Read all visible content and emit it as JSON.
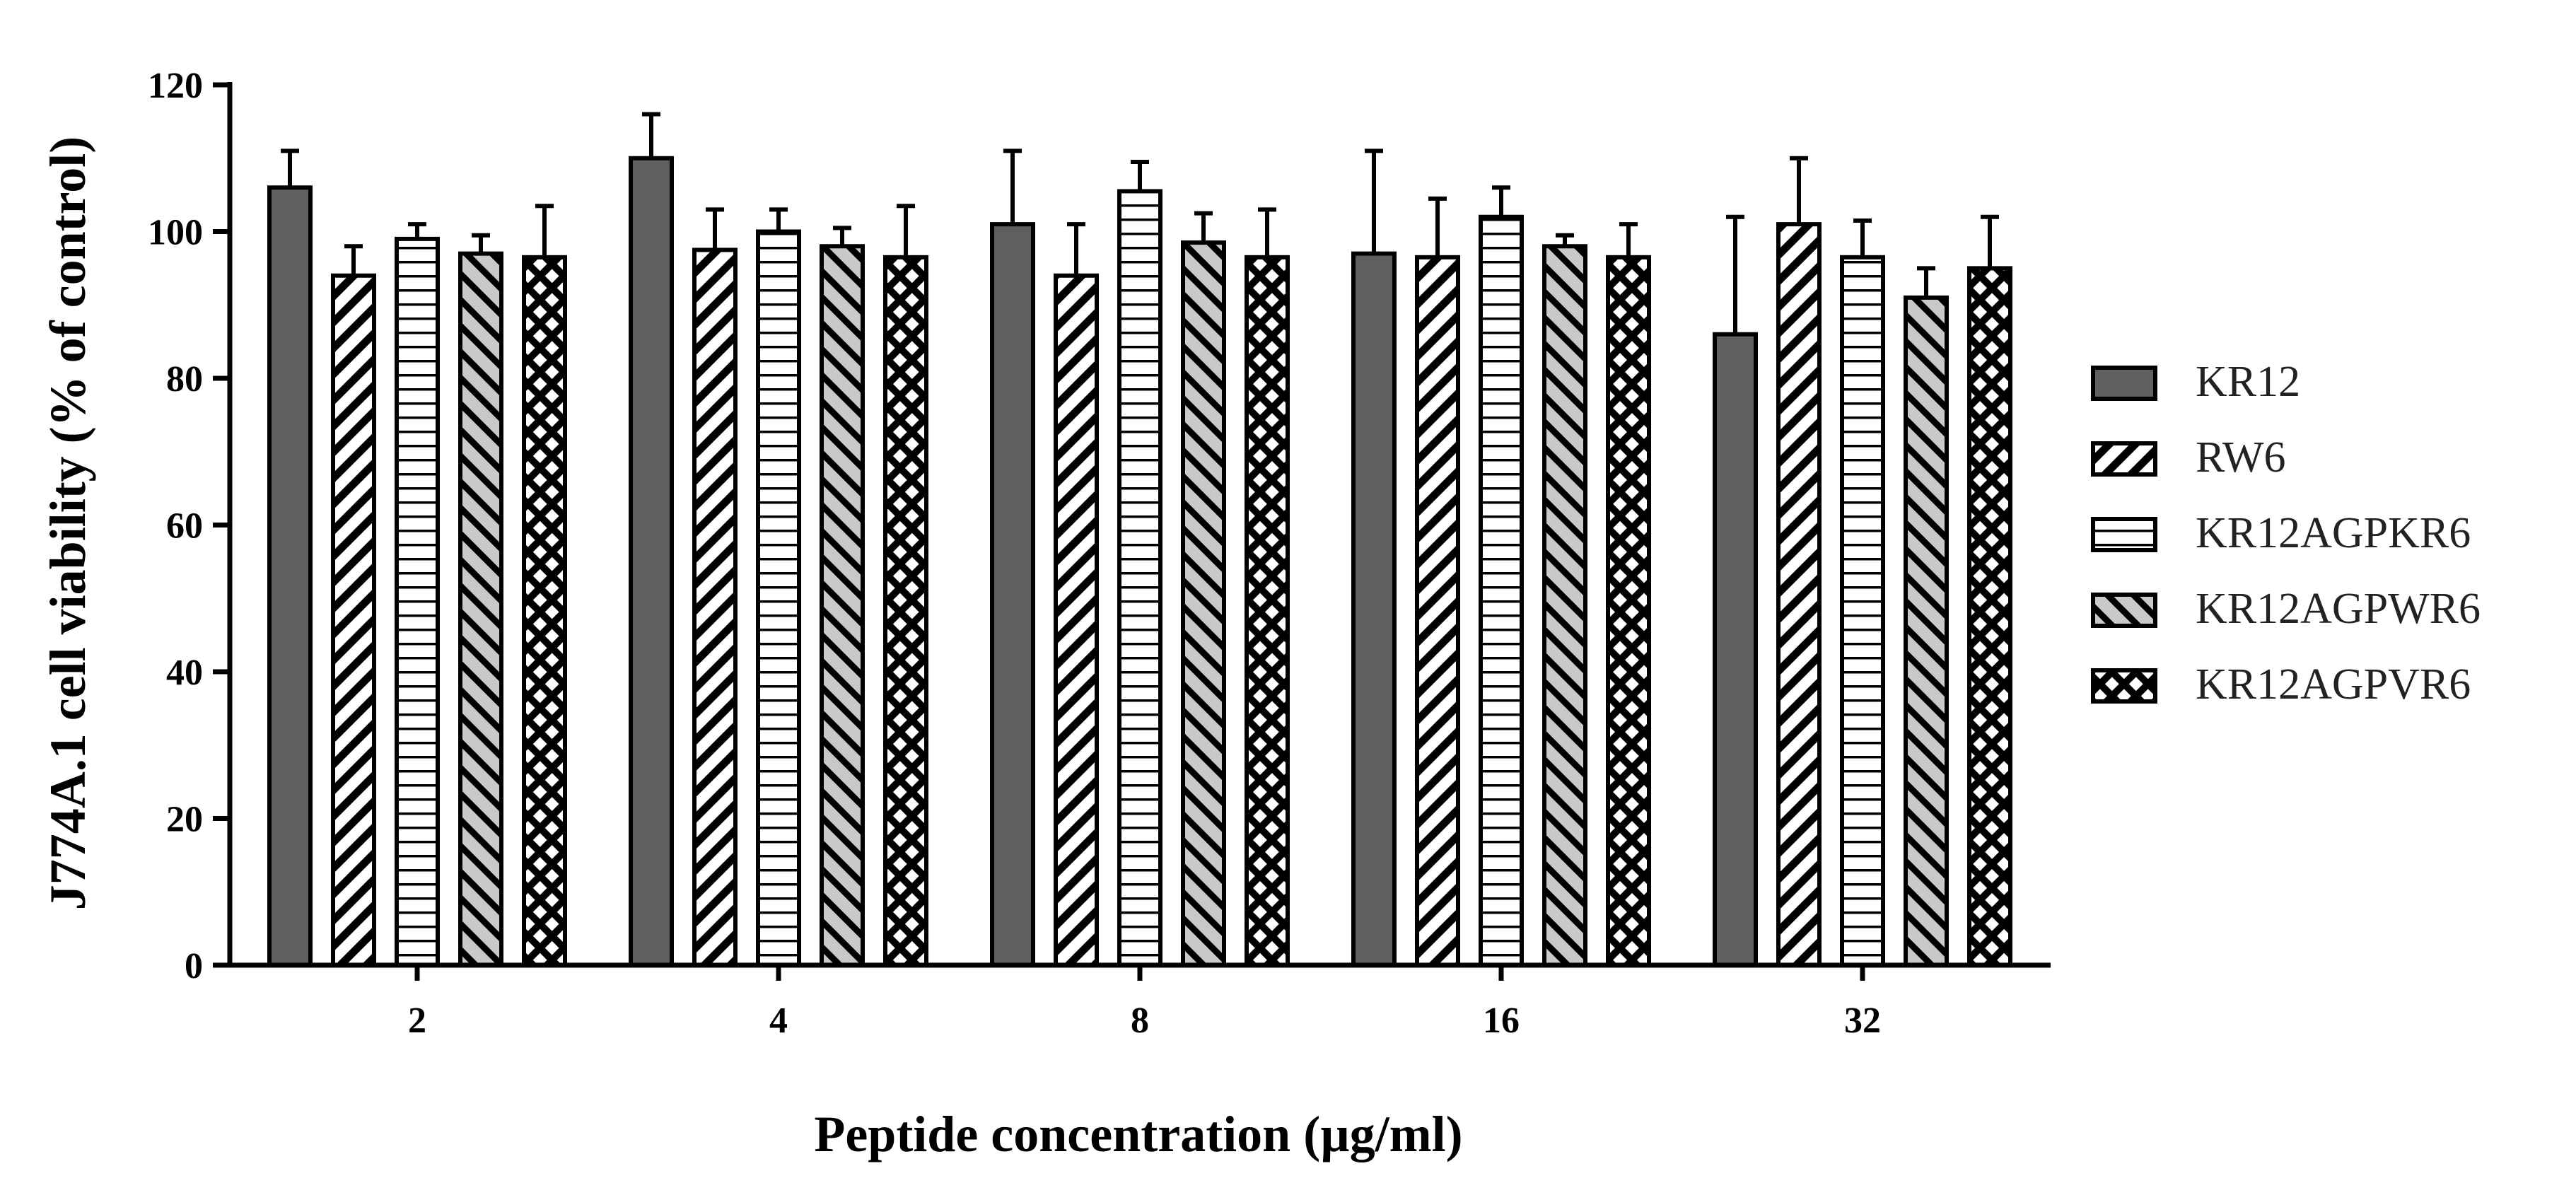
{
  "chart_data": {
    "type": "bar",
    "xlabel": "Peptide concentration (µg/ml)",
    "ylabel": "J774A.1 cell viability (% of control)",
    "categories": [
      "2",
      "4",
      "8",
      "16",
      "32"
    ],
    "ylim": [
      0,
      120
    ],
    "yticks": [
      0,
      20,
      40,
      60,
      80,
      100,
      120
    ],
    "legend_position": "right",
    "series": [
      {
        "name": "KR12",
        "pattern": "solid",
        "values": [
          106,
          110,
          101,
          97,
          86
        ],
        "errors": [
          5,
          6,
          10,
          14,
          16
        ]
      },
      {
        "name": "RW6",
        "pattern": "diagonal",
        "values": [
          94,
          97.5,
          94,
          96.5,
          101
        ],
        "errors": [
          4,
          5.5,
          7,
          8,
          9
        ]
      },
      {
        "name": "KR12AGPKR6",
        "pattern": "horizontal",
        "values": [
          99,
          100,
          105.5,
          102,
          96.5
        ],
        "errors": [
          2,
          3,
          4,
          4,
          5
        ]
      },
      {
        "name": "KR12AGPWR6",
        "pattern": "diagonal-gray",
        "values": [
          97,
          98,
          98.5,
          98,
          91
        ],
        "errors": [
          2.5,
          2.5,
          4,
          1.5,
          4
        ]
      },
      {
        "name": "KR12AGPVR6",
        "pattern": "crosshatch",
        "values": [
          96.5,
          96.5,
          96.5,
          96.5,
          95
        ],
        "errors": [
          7,
          7,
          6.5,
          4.5,
          7
        ]
      }
    ],
    "colors": {
      "solid": "#5f5f5f",
      "stroke": "#000000",
      "gray_stripe": "#c9c9c9"
    }
  }
}
